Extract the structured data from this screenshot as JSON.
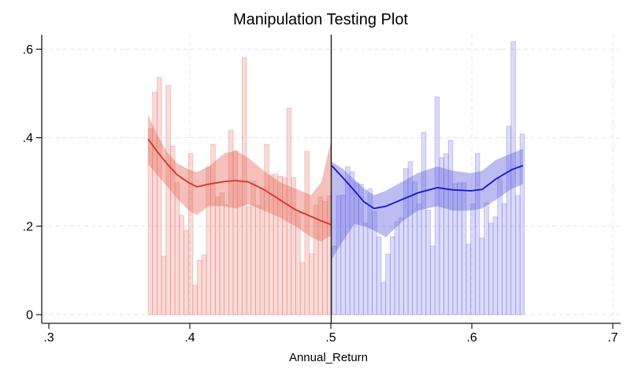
{
  "title": "Manipulation Testing Plot",
  "chart_data": {
    "type": "rd-density-manipulation-test (histogram + local polynomial density with confidence bands)",
    "title": "Manipulation Testing Plot",
    "xlabel": "Annual_Return",
    "ylabel": "",
    "x_tick_labels": [
      ".3",
      ".4",
      ".5",
      ".6",
      ".7"
    ],
    "x_tick_values": [
      0.3,
      0.4,
      0.5,
      0.6,
      0.7
    ],
    "y_tick_labels": [
      "0",
      ".2",
      ".4",
      ".6"
    ],
    "y_tick_values": [
      0,
      0.2,
      0.4,
      0.6
    ],
    "xlim": [
      0.295,
      0.706
    ],
    "ylim": [
      0,
      0.65
    ],
    "grid": "dashed",
    "legend": "none",
    "cutoff": 0.5,
    "colors": {
      "axis": "#1a1a1a",
      "gridline": "#e4e4e4",
      "cutoff_line": "#1f1f1f",
      "background": "#ffffff"
    },
    "left_group": {
      "name": "below-cutoff",
      "line_color": "#d93a28",
      "band_color": "rgba(232,105,90,0.42)",
      "bar_fill": "rgba(232,105,90,0.24)",
      "bar_stroke": "rgba(232,105,90,0.45)",
      "histogram": {
        "bin_start": 0.3704,
        "bin_width": 0.003175,
        "densities": [
          0.42,
          0.503,
          0.536,
          0.132,
          0.518,
          0.381,
          0.298,
          0.224,
          0.19,
          0.364,
          0.066,
          0.123,
          0.135,
          0.334,
          0.385,
          0.266,
          0.275,
          0.248,
          0.417,
          0.37,
          0.3,
          0.581,
          0.244,
          0.302,
          0.247,
          0.285,
          0.385,
          0.316,
          0.318,
          0.313,
          0.31,
          0.467,
          0.31,
          0.23,
          0.118,
          0.369,
          0.137,
          0.248,
          0.266,
          0.256,
          0.268
        ]
      },
      "line": {
        "x": [
          0.3704,
          0.3771,
          0.3838,
          0.3911,
          0.3994,
          0.405,
          0.4134,
          0.4246,
          0.433,
          0.4413,
          0.4525,
          0.4637,
          0.4749,
          0.486,
          0.4933,
          0.5006
        ],
        "y": [
          0.397,
          0.368,
          0.341,
          0.316,
          0.298,
          0.289,
          0.295,
          0.301,
          0.303,
          0.3,
          0.283,
          0.26,
          0.237,
          0.222,
          0.212,
          0.203
        ]
      },
      "band": {
        "x": [
          0.3704,
          0.3771,
          0.3838,
          0.3911,
          0.3994,
          0.405,
          0.4134,
          0.4246,
          0.433,
          0.4413,
          0.4525,
          0.4637,
          0.4749,
          0.486,
          0.4933,
          0.5006
        ],
        "upper": [
          0.452,
          0.405,
          0.368,
          0.342,
          0.328,
          0.322,
          0.335,
          0.365,
          0.37,
          0.355,
          0.325,
          0.3,
          0.285,
          0.27,
          0.3,
          0.4
        ],
        "lower": [
          0.34,
          0.315,
          0.29,
          0.262,
          0.235,
          0.225,
          0.245,
          0.245,
          0.24,
          0.25,
          0.235,
          0.22,
          0.2,
          0.175,
          0.165,
          0.18
        ]
      }
    },
    "right_group": {
      "name": "above-cutoff",
      "line_color": "#1b1bcd",
      "band_color": "rgba(95,95,222,0.42)",
      "bar_fill": "rgba(105,105,228,0.24)",
      "bar_stroke": "rgba(105,105,228,0.45)",
      "histogram": {
        "bin_start": 0.5008,
        "bin_width": 0.003175,
        "densities": [
          0.155,
          0.269,
          0.27,
          0.334,
          0.323,
          0.298,
          0.295,
          0.207,
          0.284,
          0.233,
          0.176,
          0.073,
          0.137,
          0.176,
          0.21,
          0.218,
          0.33,
          0.346,
          0.3,
          0.25,
          0.412,
          0.236,
          0.155,
          0.492,
          0.355,
          0.364,
          0.394,
          0.296,
          0.298,
          0.298,
          0.159,
          0.251,
          0.364,
          0.173,
          0.253,
          0.207,
          0.221,
          0.307,
          0.251,
          0.426,
          0.617,
          0.269,
          0.408
        ]
      },
      "line": {
        "x": [
          0.5006,
          0.5084,
          0.5168,
          0.5235,
          0.5307,
          0.5391,
          0.5503,
          0.5615,
          0.5754,
          0.5866,
          0.5994,
          0.6073,
          0.6173,
          0.6285,
          0.6363
        ],
        "y": [
          0.337,
          0.31,
          0.28,
          0.255,
          0.24,
          0.245,
          0.26,
          0.275,
          0.287,
          0.282,
          0.28,
          0.283,
          0.307,
          0.328,
          0.337
        ]
      },
      "band": {
        "x": [
          0.5006,
          0.5084,
          0.5168,
          0.5235,
          0.5307,
          0.5391,
          0.5503,
          0.5615,
          0.5754,
          0.5866,
          0.5994,
          0.6073,
          0.6173,
          0.6285,
          0.6363
        ],
        "upper": [
          0.346,
          0.33,
          0.305,
          0.285,
          0.27,
          0.28,
          0.3,
          0.32,
          0.335,
          0.325,
          0.32,
          0.325,
          0.35,
          0.365,
          0.375
        ],
        "lower": [
          0.125,
          0.165,
          0.205,
          0.2,
          0.19,
          0.175,
          0.21,
          0.235,
          0.245,
          0.235,
          0.235,
          0.24,
          0.26,
          0.285,
          0.295
        ]
      }
    }
  }
}
